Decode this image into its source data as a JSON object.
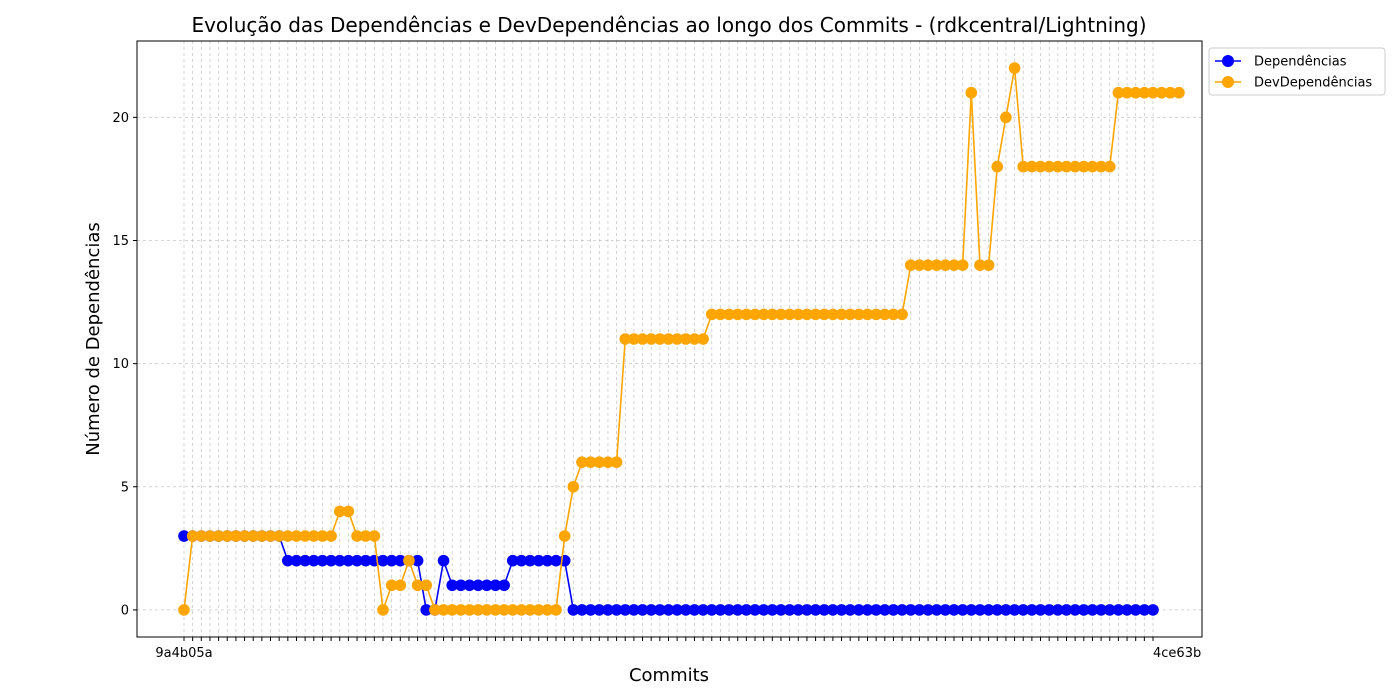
{
  "chart_data": {
    "type": "line",
    "title": "Evolução das Dependências e DevDependências ao longo dos Commits - (rdkcentral/Lightning)",
    "xlabel": "Commits",
    "ylabel": "Número de Dependências",
    "ylim": [
      -1.1,
      23.1
    ],
    "yticks": [
      0,
      5,
      10,
      15,
      20
    ],
    "x_tick_first": "9a4b05a",
    "x_tick_last": "4ce63b",
    "grid": true,
    "legend_position": "top-right (outside)",
    "series": [
      {
        "name": "Dependências",
        "color": "#0000ff",
        "values": [
          3,
          3,
          3,
          3,
          3,
          3,
          3,
          3,
          3,
          3,
          3,
          3,
          2,
          2,
          2,
          2,
          2,
          2,
          2,
          2,
          2,
          2,
          2,
          2,
          2,
          2,
          2,
          2,
          0,
          0,
          2,
          1,
          1,
          1,
          1,
          1,
          1,
          1,
          2,
          2,
          2,
          2,
          2,
          2,
          2,
          0,
          0,
          0,
          0,
          0,
          0,
          0,
          0,
          0,
          0,
          0,
          0,
          0,
          0,
          0,
          0,
          0,
          0,
          0,
          0,
          0,
          0,
          0,
          0,
          0,
          0,
          0,
          0,
          0,
          0,
          0,
          0,
          0,
          0,
          0,
          0,
          0,
          0,
          0,
          0,
          0,
          0,
          0,
          0,
          0,
          0,
          0,
          0,
          0,
          0,
          0,
          0,
          0,
          0,
          0,
          0,
          0,
          0,
          0,
          0,
          0,
          0,
          0,
          0,
          0,
          0,
          0,
          0
        ]
      },
      {
        "name": "DevDependências",
        "color": "#ffa500",
        "values": [
          0,
          3,
          3,
          3,
          3,
          3,
          3,
          3,
          3,
          3,
          3,
          3,
          3,
          3,
          3,
          3,
          3,
          3,
          4,
          4,
          3,
          3,
          3,
          0,
          1,
          1,
          2,
          1,
          1,
          0,
          0,
          0,
          0,
          0,
          0,
          0,
          0,
          0,
          0,
          0,
          0,
          0,
          0,
          0,
          3,
          5,
          6,
          6,
          6,
          6,
          6,
          11,
          11,
          11,
          11,
          11,
          11,
          11,
          11,
          11,
          11,
          12,
          12,
          12,
          12,
          12,
          12,
          12,
          12,
          12,
          12,
          12,
          12,
          12,
          12,
          12,
          12,
          12,
          12,
          12,
          12,
          12,
          12,
          12,
          14,
          14,
          14,
          14,
          14,
          14,
          14,
          21,
          14,
          14,
          18,
          20,
          22,
          18,
          18,
          18,
          18,
          18,
          18,
          18,
          18,
          18,
          18,
          18,
          21,
          21,
          21,
          21,
          21,
          21,
          21,
          21
        ]
      }
    ]
  }
}
